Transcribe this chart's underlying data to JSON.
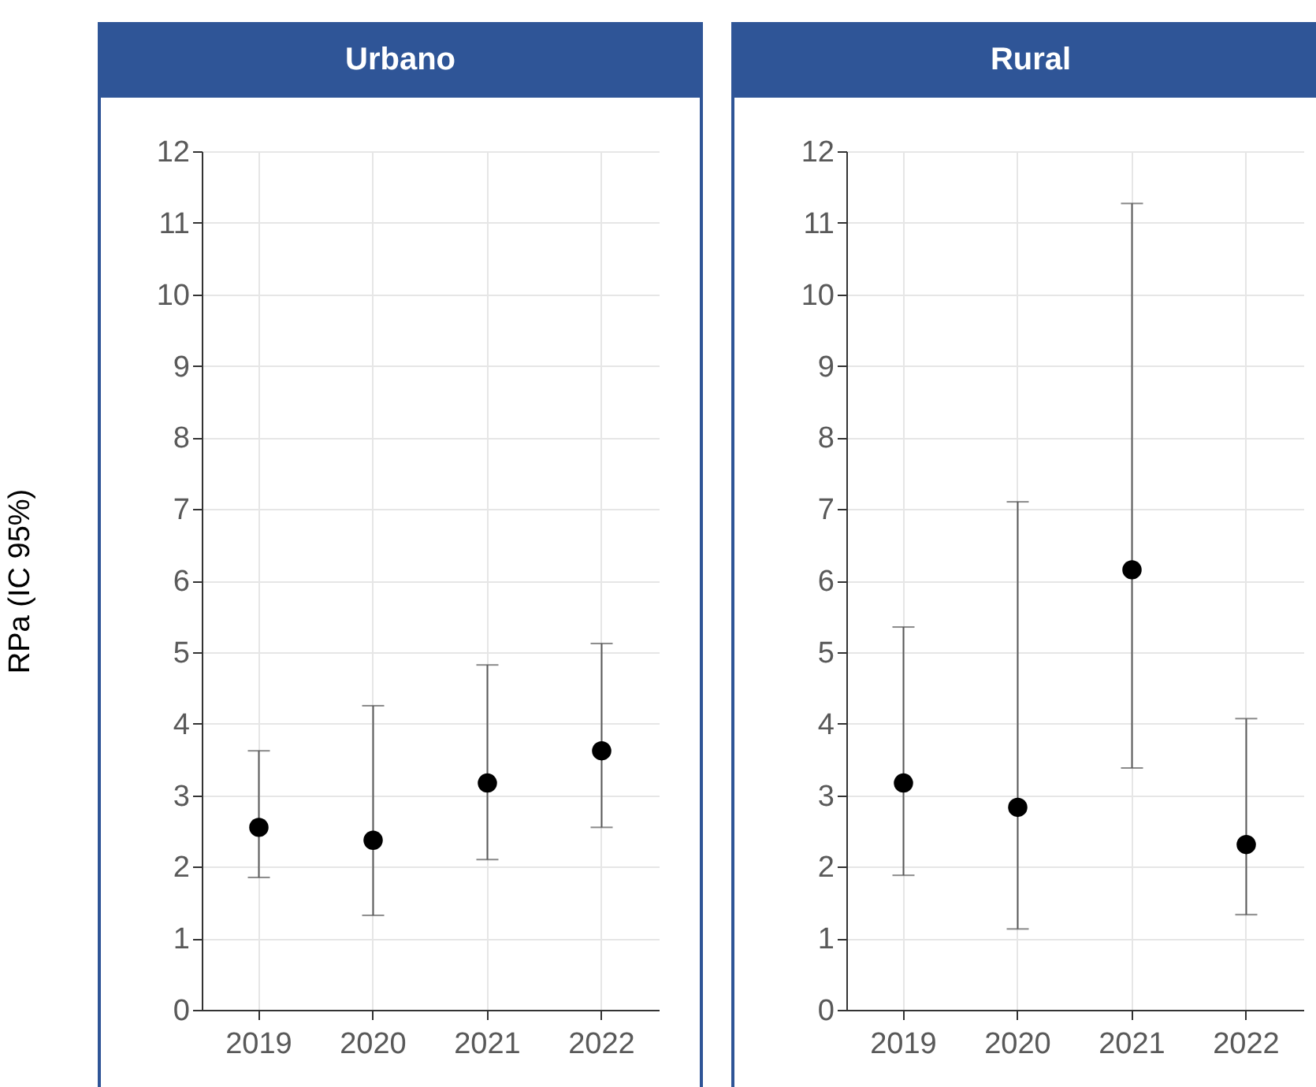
{
  "chart_data": [
    {
      "type": "scatter",
      "title": "Urbano",
      "ylabel": "RPa (IC 95%)",
      "categories": [
        "2019",
        "2020",
        "2021",
        "2022"
      ],
      "values": [
        2.55,
        2.37,
        3.17,
        3.62
      ],
      "errors": [
        [
          1.85,
          3.62
        ],
        [
          1.32,
          4.25
        ],
        [
          2.1,
          4.82
        ],
        [
          2.55,
          5.12
        ]
      ],
      "color": "#000000",
      "marker": "circle",
      "grid": true,
      "ylim": [
        0,
        12
      ],
      "yticks": [
        0,
        1,
        2,
        3,
        4,
        5,
        6,
        7,
        8,
        9,
        10,
        11,
        12
      ]
    },
    {
      "type": "scatter",
      "title": "Rural",
      "categories": [
        "2019",
        "2020",
        "2021",
        "2022"
      ],
      "values": [
        3.17,
        2.83,
        6.15,
        2.31
      ],
      "errors": [
        [
          1.88,
          5.35
        ],
        [
          1.13,
          7.1
        ],
        [
          3.38,
          11.27
        ],
        [
          1.33,
          4.07
        ]
      ],
      "color": "#000000",
      "marker": "circle",
      "grid": true,
      "ylim": [
        0,
        12
      ],
      "yticks": [
        0,
        1,
        2,
        3,
        4,
        5,
        6,
        7,
        8,
        9,
        10,
        11,
        12
      ]
    }
  ]
}
